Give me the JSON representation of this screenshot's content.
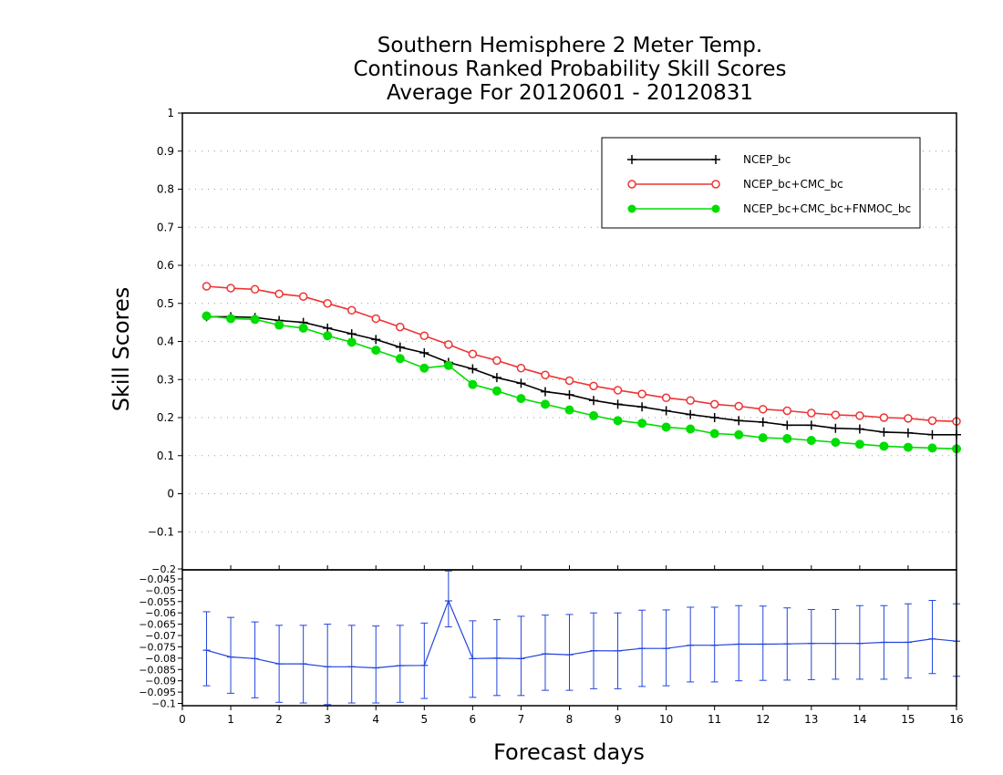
{
  "chart_data": [
    {
      "type": "line",
      "title_lines": [
        "Southern Hemisphere 2 Meter Temp.",
        "Continous Ranked Probability Skill Scores",
        "Average For 20120601 - 20120831"
      ],
      "ylabel": "Skill Scores",
      "xlim": [
        0,
        16
      ],
      "ylim": [
        -0.2,
        1.0
      ],
      "y_ticks": [
        "-0.1",
        "0",
        "0.1",
        "0.2",
        "0.3",
        "0.4",
        "0.5",
        "0.6",
        "0.7",
        "0.8",
        "0.9",
        "1"
      ],
      "grid": "horizontal dotted",
      "legend_position": "top-right",
      "x": [
        0.5,
        1,
        1.5,
        2,
        2.5,
        3,
        3.5,
        4,
        4.5,
        5,
        5.5,
        6,
        6.5,
        7,
        7.5,
        8,
        8.5,
        9,
        9.5,
        10,
        10.5,
        11,
        11.5,
        12,
        12.5,
        13,
        13.5,
        14,
        14.5,
        15,
        15.5,
        16
      ],
      "series": [
        {
          "name": "NCEP_bc",
          "color": "#000000",
          "marker": "plus",
          "values": [
            0.465,
            0.465,
            0.463,
            0.455,
            0.45,
            0.435,
            0.42,
            0.405,
            0.385,
            0.37,
            0.345,
            0.328,
            0.305,
            0.29,
            0.268,
            0.26,
            0.245,
            0.235,
            0.228,
            0.218,
            0.208,
            0.2,
            0.192,
            0.188,
            0.18,
            0.18,
            0.172,
            0.17,
            0.162,
            0.16,
            0.155,
            0.155
          ]
        },
        {
          "name": "NCEP_bc+CMC_bc",
          "color": "#ee3333",
          "marker": "open-circle",
          "values": [
            0.545,
            0.54,
            0.537,
            0.525,
            0.518,
            0.5,
            0.482,
            0.46,
            0.438,
            0.415,
            0.392,
            0.367,
            0.35,
            0.33,
            0.312,
            0.297,
            0.283,
            0.272,
            0.262,
            0.252,
            0.245,
            0.235,
            0.23,
            0.222,
            0.218,
            0.212,
            0.207,
            0.205,
            0.2,
            0.198,
            0.192,
            0.19
          ]
        },
        {
          "name": "NCEP_bc+CMC_bc+FNMOC_bc",
          "color": "#00dd00",
          "marker": "filled-circle",
          "values": [
            0.467,
            0.46,
            0.458,
            0.443,
            0.435,
            0.415,
            0.398,
            0.377,
            0.355,
            0.33,
            0.337,
            0.287,
            0.27,
            0.25,
            0.235,
            0.22,
            0.205,
            0.192,
            0.185,
            0.175,
            0.17,
            0.158,
            0.155,
            0.147,
            0.145,
            0.14,
            0.135,
            0.13,
            0.125,
            0.122,
            0.12,
            0.118
          ]
        }
      ]
    },
    {
      "type": "line",
      "subtype": "difference-with-error-bars",
      "xlabel": "Forecast days",
      "x_ticks": [
        "0",
        "1",
        "2",
        "3",
        "4",
        "5",
        "6",
        "7",
        "8",
        "9",
        "10",
        "11",
        "12",
        "13",
        "14",
        "15",
        "16"
      ],
      "xlim": [
        0,
        16
      ],
      "ylim": [
        -0.101,
        -0.041
      ],
      "y_ticks": [
        "-0.1",
        "-0.095",
        "-0.09",
        "-0.085",
        "-0.08",
        "-0.075",
        "-0.07",
        "-0.065",
        "-0.06",
        "-0.055",
        "-0.05",
        "-0.045",
        "-0.2"
      ],
      "color": "#2244dd",
      "x": [
        0.5,
        1,
        1.5,
        2,
        2.5,
        3,
        3.5,
        4,
        4.5,
        5,
        5.5,
        6,
        6.5,
        7,
        7.5,
        8,
        8.5,
        9,
        9.5,
        10,
        10.5,
        11,
        11.5,
        12,
        12.5,
        13,
        13.5,
        14,
        14.5,
        15,
        15.5,
        16
      ],
      "values": [
        -0.0765,
        -0.0795,
        -0.0802,
        -0.0825,
        -0.0825,
        -0.0838,
        -0.0838,
        -0.0843,
        -0.0833,
        -0.0832,
        -0.0547,
        -0.0802,
        -0.08,
        -0.0802,
        -0.0781,
        -0.0785,
        -0.0767,
        -0.0768,
        -0.0757,
        -0.0757,
        -0.0743,
        -0.0743,
        -0.0738,
        -0.0738,
        -0.0737,
        -0.0735,
        -0.0735,
        -0.0735,
        -0.073,
        -0.073,
        -0.0715,
        -0.0725
      ],
      "err_high": [
        -0.0595,
        -0.062,
        -0.064,
        -0.0655,
        -0.0655,
        -0.065,
        -0.0655,
        -0.0658,
        -0.0655,
        -0.0645,
        -0.0415,
        -0.0635,
        -0.063,
        -0.0615,
        -0.061,
        -0.0607,
        -0.06,
        -0.06,
        -0.0588,
        -0.0587,
        -0.0575,
        -0.0575,
        -0.0568,
        -0.057,
        -0.0578,
        -0.0585,
        -0.0585,
        -0.0568,
        -0.0568,
        -0.056,
        -0.0545,
        -0.056
      ],
      "err_low": [
        -0.0922,
        -0.0955,
        -0.0975,
        -0.0995,
        -0.0998,
        -0.1005,
        -0.0998,
        -0.0998,
        -0.0995,
        -0.0978,
        -0.0662,
        -0.0973,
        -0.0965,
        -0.0965,
        -0.0942,
        -0.0942,
        -0.0935,
        -0.0935,
        -0.0925,
        -0.0922,
        -0.0905,
        -0.0905,
        -0.09,
        -0.0898,
        -0.0897,
        -0.0895,
        -0.0893,
        -0.0893,
        -0.0893,
        -0.0888,
        -0.0868,
        -0.088
      ]
    }
  ]
}
